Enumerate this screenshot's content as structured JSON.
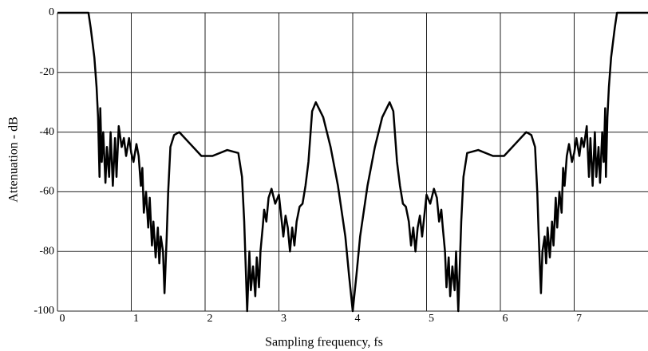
{
  "chart_data": {
    "type": "line",
    "x_label": "Sampling frequency, fs",
    "y_label": "Attenuation - dB",
    "xlim": [
      0,
      8
    ],
    "ylim": [
      -100,
      0
    ],
    "xticks": [
      0,
      1,
      2,
      3,
      4,
      5,
      6,
      7
    ],
    "yticks": [
      0,
      -20,
      -40,
      -60,
      -80,
      -100
    ],
    "grid": true,
    "series": [
      {
        "color": "#000000",
        "x": [
          0,
          0.3,
          0.42,
          0.45,
          0.5,
          0.53,
          0.55,
          0.57,
          0.58,
          0.6,
          0.62,
          0.65,
          0.67,
          0.7,
          0.72,
          0.75,
          0.78,
          0.8,
          0.83,
          0.87,
          0.9,
          0.93,
          0.97,
          1.0,
          1.03,
          1.07,
          1.1,
          1.13,
          1.15,
          1.17,
          1.2,
          1.23,
          1.25,
          1.28,
          1.3,
          1.33,
          1.36,
          1.38,
          1.4,
          1.43,
          1.45,
          1.48,
          1.5,
          1.53,
          1.58,
          1.65,
          1.8,
          1.95,
          2.1,
          2.3,
          2.45,
          2.5,
          2.53,
          2.55,
          2.57,
          2.6,
          2.62,
          2.65,
          2.68,
          2.7,
          2.73,
          2.75,
          2.78,
          2.8,
          2.83,
          2.86,
          2.9,
          2.95,
          3.0,
          3.03,
          3.06,
          3.09,
          3.12,
          3.15,
          3.18,
          3.21,
          3.24,
          3.28,
          3.32,
          3.36,
          3.4,
          3.45,
          3.5,
          3.6,
          3.7,
          3.8,
          3.9,
          3.95,
          4.0,
          4.05,
          4.1,
          4.2,
          4.3,
          4.4,
          4.5,
          4.55,
          4.6,
          4.64,
          4.68,
          4.72,
          4.76,
          4.79,
          4.82,
          4.85,
          4.88,
          4.91,
          4.94,
          4.97,
          5.0,
          5.05,
          5.1,
          5.14,
          5.17,
          5.2,
          5.22,
          5.25,
          5.27,
          5.3,
          5.32,
          5.35,
          5.38,
          5.4,
          5.43,
          5.45,
          5.47,
          5.5,
          5.55,
          5.7,
          5.9,
          6.05,
          6.2,
          6.35,
          6.42,
          6.47,
          6.5,
          6.52,
          6.55,
          6.57,
          6.6,
          6.62,
          6.64,
          6.67,
          6.7,
          6.72,
          6.75,
          6.77,
          6.8,
          6.83,
          6.85,
          6.87,
          6.9,
          6.93,
          6.97,
          7.0,
          7.03,
          7.07,
          7.1,
          7.13,
          7.17,
          7.2,
          7.22,
          7.25,
          7.28,
          7.3,
          7.33,
          7.35,
          7.38,
          7.4,
          7.42,
          7.43,
          7.45,
          7.47,
          7.5,
          7.55,
          7.58,
          7.7,
          8
        ],
        "values": [
          0,
          0,
          0,
          -5,
          -15,
          -25,
          -35,
          -55,
          -32,
          -50,
          -40,
          -57,
          -45,
          -55,
          -40,
          -58,
          -42,
          -55,
          -38,
          -45,
          -42,
          -48,
          -42,
          -47,
          -50,
          -44,
          -48,
          -58,
          -52,
          -67,
          -60,
          -72,
          -62,
          -78,
          -70,
          -82,
          -72,
          -84,
          -75,
          -80,
          -94,
          -75,
          -60,
          -45,
          -41,
          -40,
          -44,
          -48,
          -48,
          -46,
          -47,
          -55,
          -70,
          -85,
          -100,
          -80,
          -93,
          -85,
          -95,
          -82,
          -92,
          -80,
          -72,
          -66,
          -70,
          -62,
          -59,
          -64,
          -61,
          -68,
          -75,
          -68,
          -72,
          -80,
          -72,
          -78,
          -70,
          -65,
          -64,
          -58,
          -50,
          -33,
          -30,
          -35,
          -45,
          -58,
          -75,
          -88,
          -100,
          -88,
          -75,
          -58,
          -45,
          -35,
          -30,
          -33,
          -50,
          -58,
          -64,
          -65,
          -70,
          -78,
          -72,
          -80,
          -72,
          -68,
          -75,
          -68,
          -61,
          -64,
          -59,
          -62,
          -70,
          -66,
          -72,
          -80,
          -92,
          -82,
          -95,
          -85,
          -93,
          -80,
          -100,
          -85,
          -70,
          -55,
          -47,
          -46,
          -48,
          -48,
          -44,
          -40,
          -41,
          -45,
          -60,
          -75,
          -94,
          -80,
          -75,
          -84,
          -72,
          -82,
          -70,
          -78,
          -62,
          -72,
          -60,
          -67,
          -52,
          -58,
          -48,
          -44,
          -50,
          -47,
          -42,
          -48,
          -42,
          -45,
          -38,
          -55,
          -42,
          -58,
          -40,
          -55,
          -45,
          -57,
          -40,
          -50,
          -32,
          -55,
          -35,
          -25,
          -15,
          -5,
          0,
          0,
          0
        ]
      }
    ]
  }
}
